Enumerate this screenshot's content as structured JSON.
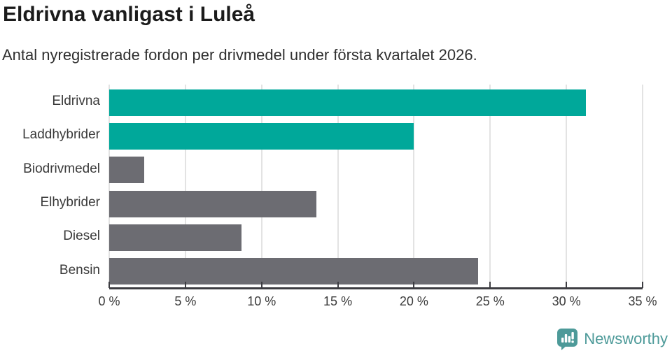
{
  "header": {
    "title": "Eldrivna vanligast i Luleå",
    "subtitle": "Antal nyregistrerade fordon per drivmedel under första kvartalet 2026."
  },
  "chart_data": {
    "type": "bar",
    "orientation": "horizontal",
    "title": "Eldrivna vanligast i Luleå",
    "subtitle": "Antal nyregistrerade fordon per drivmedel under första kvartalet 2026.",
    "categories": [
      "Eldrivna",
      "Laddhybrider",
      "Biodrivmedel",
      "Elhybrider",
      "Diesel",
      "Bensin"
    ],
    "values": [
      31.3,
      20.0,
      2.3,
      13.6,
      8.7,
      24.2
    ],
    "unit": "%",
    "xlabel": "",
    "ylabel": "",
    "xlim": [
      0,
      35
    ],
    "x_ticks": [
      0,
      5,
      10,
      15,
      20,
      25,
      30,
      35
    ],
    "x_tick_labels": [
      "0 %",
      "5 %",
      "10 %",
      "15 %",
      "20 %",
      "25 %",
      "30 %",
      "35 %"
    ],
    "bar_colors": [
      "#00a89a",
      "#00a89a",
      "#6c6c72",
      "#6c6c72",
      "#6c6c72",
      "#6c6c72"
    ],
    "grid": "vertical-gridlines-behind-bars",
    "legend": "none"
  },
  "branding": {
    "logo_text": "Newsworthy",
    "logo_icon": "speech-bubble-bar-chart-icon",
    "logo_color": "#4d9a99"
  },
  "colors": {
    "accent_teal": "#00a89a",
    "neutral_gray": "#6c6c72",
    "gridline": "#e3e3e3",
    "axis": "#3d3d42",
    "title_text": "#1b1b1b",
    "body_text": "#3a3a3a"
  }
}
